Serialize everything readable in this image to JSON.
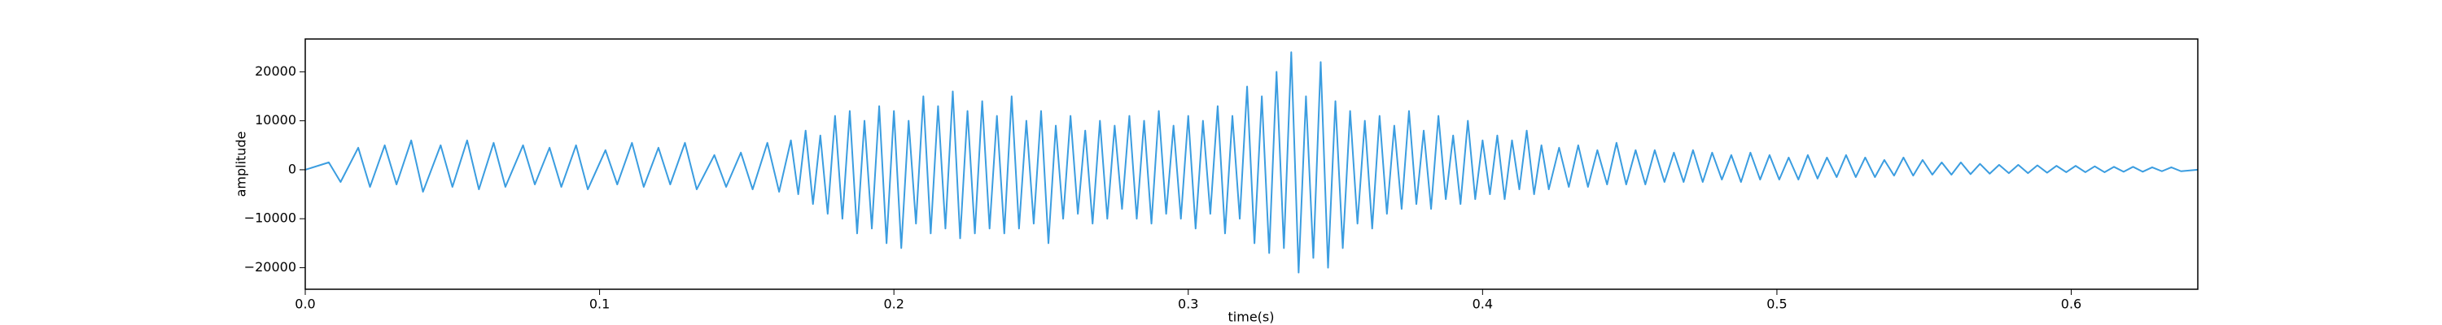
{
  "chart_data": {
    "type": "line",
    "xlabel": "time(s)",
    "ylabel": "amplitude",
    "x": [
      0,
      0.008,
      0.012,
      0.018,
      0.022,
      0.027,
      0.031,
      0.036,
      0.04,
      0.046,
      0.05,
      0.055,
      0.059,
      0.064,
      0.068,
      0.074,
      0.078,
      0.083,
      0.087,
      0.092,
      0.096,
      0.102,
      0.106,
      0.111,
      0.115,
      0.12,
      0.124,
      0.129,
      0.133,
      0.139,
      0.143,
      0.148,
      0.152,
      0.157,
      0.161,
      0.165,
      0.1675,
      0.17,
      0.1725,
      0.175,
      0.1775,
      0.18,
      0.1825,
      0.185,
      0.1875,
      0.19,
      0.1925,
      0.195,
      0.1975,
      0.2,
      0.2025,
      0.205,
      0.2075,
      0.21,
      0.2125,
      0.215,
      0.2175,
      0.22,
      0.2225,
      0.225,
      0.2275,
      0.23,
      0.2325,
      0.235,
      0.2375,
      0.24,
      0.2425,
      0.245,
      0.2475,
      0.25,
      0.2525,
      0.255,
      0.2575,
      0.26,
      0.2625,
      0.265,
      0.2675,
      0.27,
      0.2725,
      0.275,
      0.2775,
      0.28,
      0.2825,
      0.285,
      0.2875,
      0.29,
      0.2925,
      0.295,
      0.2975,
      0.3,
      0.3025,
      0.305,
      0.3075,
      0.31,
      0.3125,
      0.315,
      0.3175,
      0.32,
      0.3225,
      0.325,
      0.3275,
      0.33,
      0.3325,
      0.335,
      0.3375,
      0.34,
      0.3425,
      0.345,
      0.3475,
      0.35,
      0.3525,
      0.355,
      0.3575,
      0.36,
      0.3625,
      0.365,
      0.3675,
      0.37,
      0.3725,
      0.375,
      0.3775,
      0.38,
      0.3825,
      0.385,
      0.3875,
      0.39,
      0.3925,
      0.395,
      0.3975,
      0.4,
      0.4025,
      0.405,
      0.4075,
      0.41,
      0.4125,
      0.415,
      0.4175,
      0.42,
      0.4225,
      0.426,
      0.4293,
      0.4325,
      0.4358,
      0.439,
      0.4423,
      0.4455,
      0.4488,
      0.452,
      0.4553,
      0.4585,
      0.4618,
      0.465,
      0.4683,
      0.4715,
      0.4748,
      0.478,
      0.4813,
      0.4845,
      0.4878,
      0.491,
      0.4943,
      0.4975,
      0.5008,
      0.504,
      0.5073,
      0.5105,
      0.5138,
      0.517,
      0.5203,
      0.5235,
      0.5268,
      0.53,
      0.5333,
      0.5365,
      0.5398,
      0.543,
      0.5463,
      0.5495,
      0.5528,
      0.556,
      0.5593,
      0.5625,
      0.5658,
      0.569,
      0.5723,
      0.5755,
      0.5788,
      0.582,
      0.5853,
      0.5885,
      0.5918,
      0.595,
      0.5983,
      0.6015,
      0.6048,
      0.608,
      0.6113,
      0.6145,
      0.6178,
      0.621,
      0.6243,
      0.6275,
      0.6308,
      0.634,
      0.6373,
      0.643
    ],
    "series": [
      {
        "color": "#3b9de0",
        "values": [
          0,
          1500,
          -2500,
          4500,
          -3500,
          5000,
          -3000,
          6000,
          -4500,
          5000,
          -3500,
          6000,
          -4000,
          5500,
          -3500,
          5000,
          -3000,
          4500,
          -3500,
          5000,
          -4000,
          4000,
          -3000,
          5500,
          -3500,
          4500,
          -3000,
          5500,
          -4000,
          3000,
          -3500,
          3500,
          -4000,
          5500,
          -4500,
          6000,
          -5000,
          8000,
          -7000,
          7000,
          -9000,
          11000,
          -10000,
          12000,
          -13000,
          10000,
          -12000,
          13000,
          -15000,
          12000,
          -16000,
          10000,
          -11000,
          15000,
          -13000,
          13000,
          -12000,
          16000,
          -14000,
          12000,
          -13000,
          14000,
          -12000,
          11000,
          -13000,
          15000,
          -12000,
          10000,
          -11000,
          12000,
          -15000,
          9000,
          -10000,
          11000,
          -9000,
          8000,
          -11000,
          10000,
          -10000,
          9000,
          -8000,
          11000,
          -10000,
          10000,
          -11000,
          12000,
          -9000,
          9000,
          -10000,
          11000,
          -12000,
          10000,
          -9000,
          13000,
          -13000,
          11000,
          -10000,
          17000,
          -15000,
          15000,
          -17000,
          20000,
          -16000,
          24000,
          -21000,
          15000,
          -18000,
          22000,
          -20000,
          14000,
          -16000,
          12000,
          -11000,
          10000,
          -12000,
          11000,
          -9000,
          9000,
          -8000,
          12000,
          -7000,
          8000,
          -8000,
          11000,
          -6000,
          7000,
          -7000,
          10000,
          -6000,
          6000,
          -5000,
          7000,
          -6000,
          6000,
          -4000,
          8000,
          -5000,
          5000,
          -4000,
          4500,
          -3500,
          5000,
          -3500,
          4000,
          -3000,
          5500,
          -3000,
          4000,
          -3000,
          4000,
          -2500,
          3500,
          -2500,
          4000,
          -2500,
          3500,
          -2000,
          3000,
          -2500,
          3500,
          -2000,
          3000,
          -2000,
          2500,
          -2000,
          3000,
          -1800,
          2500,
          -1500,
          3000,
          -1500,
          2500,
          -1500,
          2000,
          -1200,
          2500,
          -1200,
          2000,
          -1000,
          1500,
          -1000,
          1500,
          -900,
          1200,
          -800,
          1000,
          -700,
          1000,
          -700,
          900,
          -600,
          800,
          -500,
          800,
          -500,
          700,
          -500,
          600,
          -400,
          600,
          -400,
          500,
          -300,
          500,
          -300,
          0
        ]
      }
    ],
    "xlim": [
      0,
      0.643
    ],
    "ylim": [
      -24400,
      26700
    ],
    "xticks": [
      {
        "value": 0,
        "label": "0.0"
      },
      0.1,
      0.2,
      0.3,
      0.4,
      0.5,
      0.6
    ],
    "yticks": [
      {
        "value": -20000,
        "label": "−20000"
      },
      {
        "value": -10000,
        "label": "−10000"
      },
      0,
      10000,
      20000
    ]
  }
}
